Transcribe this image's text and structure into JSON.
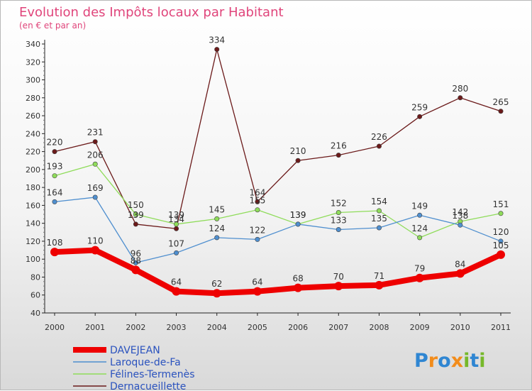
{
  "chart_data": {
    "type": "line",
    "title": "Evolution des Impôts locaux par Habitant",
    "subtitle": "(en € et par an)",
    "xlabel": "",
    "ylabel": "",
    "categories": [
      "2000",
      "2001",
      "2002",
      "2003",
      "2004",
      "2005",
      "2006",
      "2007",
      "2008",
      "2009",
      "2010",
      "2011"
    ],
    "ylim": [
      40,
      340
    ],
    "yticks": [
      40,
      60,
      80,
      100,
      120,
      140,
      160,
      180,
      200,
      220,
      240,
      260,
      280,
      300,
      320,
      340
    ],
    "grid": false,
    "legend_position": "bottom-left",
    "series": [
      {
        "name": "DAVEJEAN",
        "color": "#ee0000",
        "values": [
          108,
          110,
          88,
          64,
          62,
          64,
          68,
          70,
          71,
          79,
          84,
          105
        ]
      },
      {
        "name": "Laroque-de-Fa",
        "color": "#4f8fcf",
        "values": [
          164,
          169,
          96,
          107,
          124,
          122,
          139,
          133,
          135,
          149,
          138,
          120
        ]
      },
      {
        "name": "Félines-Termenès",
        "color": "#8fdc5a",
        "values": [
          193,
          206,
          150,
          139,
          145,
          155,
          139,
          152,
          154,
          124,
          142,
          151
        ]
      },
      {
        "name": "Dernacueillette",
        "color": "#6b1a1a",
        "values": [
          220,
          231,
          139,
          134,
          334,
          164,
          210,
          216,
          226,
          259,
          280,
          265
        ]
      }
    ]
  },
  "brand": {
    "letters": [
      "P",
      "r",
      "o",
      "x",
      "i",
      "t",
      "i"
    ],
    "colors": [
      "#2f86d2",
      "#f28c1b",
      "#2f86d2",
      "#f28c1b",
      "#76b82a",
      "#2f86d2",
      "#76b82a"
    ]
  }
}
